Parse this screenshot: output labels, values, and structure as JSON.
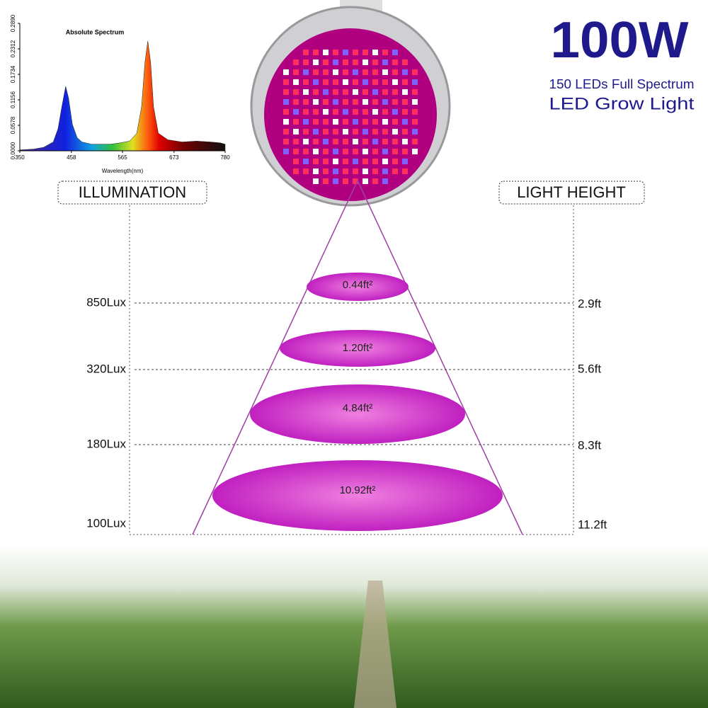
{
  "chart_data": {
    "type": "area",
    "title": "Absolute Spectrum",
    "x_label": "Wavelength(nm)",
    "x": [
      350,
      380,
      400,
      420,
      430,
      438,
      446,
      452,
      460,
      470,
      480,
      500,
      520,
      540,
      560,
      580,
      595,
      605,
      612,
      618,
      624,
      630,
      640,
      660,
      690,
      720,
      750,
      770,
      780
    ],
    "values": [
      0.002,
      0.004,
      0.008,
      0.02,
      0.05,
      0.1,
      0.146,
      0.12,
      0.06,
      0.03,
      0.02,
      0.015,
      0.015,
      0.015,
      0.018,
      0.022,
      0.04,
      0.1,
      0.2,
      0.249,
      0.2,
      0.1,
      0.04,
      0.025,
      0.02,
      0.022,
      0.02,
      0.018,
      0.015
    ],
    "xlim": [
      350,
      780
    ],
    "xticks": [
      350,
      458,
      565,
      673,
      780
    ],
    "ylim": [
      0,
      0.289
    ],
    "yticks": [
      {
        "value": 0,
        "label": "0.0000"
      },
      {
        "value": 0.0578,
        "label": "0.0578"
      },
      {
        "value": 0.1156,
        "label": "0.1156"
      },
      {
        "value": 0.1734,
        "label": "0.1734"
      },
      {
        "value": 0.2312,
        "label": "0.2312"
      },
      {
        "value": 0.289,
        "label": "0.2890"
      }
    ]
  },
  "header": {
    "power": "100W",
    "leds": "150 LEDs Full Spectrum",
    "product": "LED Grow Light"
  },
  "columns": {
    "left": "ILLUMINATION",
    "right": "LIGHT HEIGHT"
  },
  "levels": [
    {
      "lux": "850Lux",
      "height": "2.9ft",
      "area": "0.44ft²"
    },
    {
      "lux": "320Lux",
      "height": "5.6ft",
      "area": "1.20ft²"
    },
    {
      "lux": "180Lux",
      "height": "8.3ft",
      "area": "4.84ft²"
    },
    {
      "lux": "100Lux",
      "height": "11.2ft",
      "area": "10.92ft²"
    }
  ]
}
